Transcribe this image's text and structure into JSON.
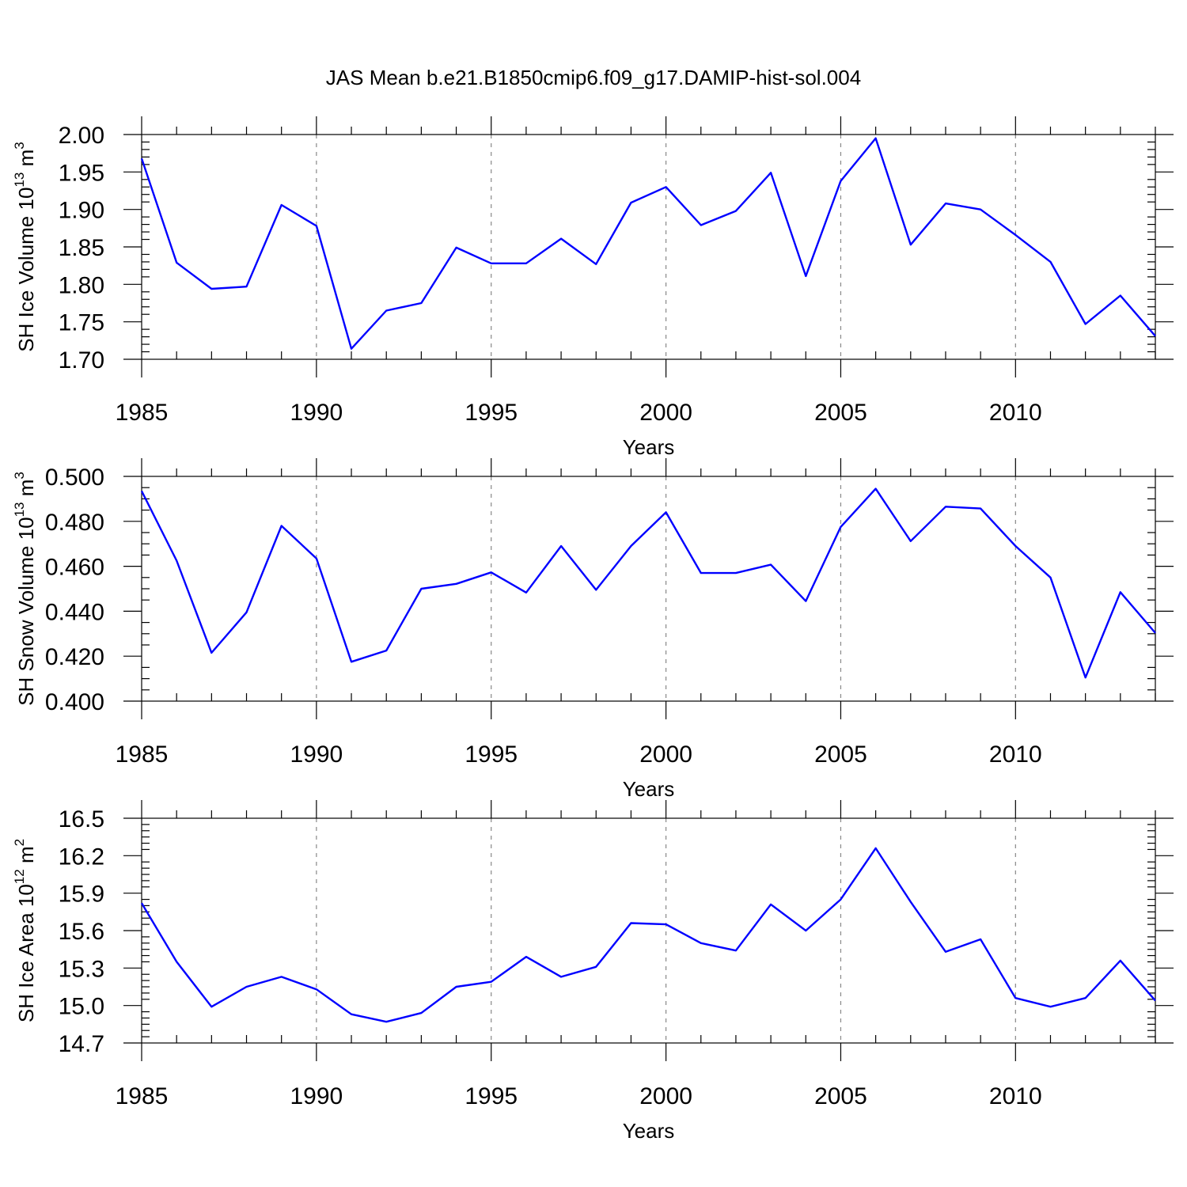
{
  "title": "JAS Mean b.e21.B1850cmip6.f09_g17.DAMIP-hist-sol.004",
  "series_color": "#0000ff",
  "chart_data": [
    {
      "type": "line",
      "title": "JAS Mean b.e21.B1850cmip6.f09_g17.DAMIP-hist-sol.004",
      "xlabel": "Years",
      "ylabel": "SH Ice Volume 10^13 m^3",
      "ylabel_parts": {
        "main": "SH Ice Volume 10",
        "exp": "13",
        "unit": " m",
        "unit_exp": "3"
      },
      "x": [
        1985,
        1986,
        1987,
        1988,
        1989,
        1990,
        1991,
        1992,
        1993,
        1994,
        1995,
        1996,
        1997,
        1998,
        1999,
        2000,
        2001,
        2002,
        2003,
        2004,
        2005,
        2006,
        2007,
        2008,
        2009,
        2010,
        2011,
        2012,
        2013,
        2014
      ],
      "y": [
        1.968,
        1.829,
        1.794,
        1.797,
        1.906,
        1.878,
        1.714,
        1.765,
        1.775,
        1.849,
        1.828,
        1.828,
        1.861,
        1.827,
        1.909,
        1.93,
        1.879,
        1.898,
        1.949,
        1.811,
        1.938,
        1.995,
        1.853,
        1.908,
        1.9,
        1.866,
        1.83,
        1.747,
        1.785,
        1.731
      ],
      "xlim": [
        1985,
        2014
      ],
      "ylim": [
        1.7,
        2.0
      ],
      "xticks": [
        "1985",
        "1990",
        "1995",
        "2000",
        "2005",
        "2010"
      ],
      "yticks": [
        "1.70",
        "1.75",
        "1.80",
        "1.85",
        "1.90",
        "1.95",
        "2.00"
      ],
      "grid": "dashed vertical at major x ticks"
    },
    {
      "type": "line",
      "xlabel": "Years",
      "ylabel": "SH Snow Volume 10^13 m^3",
      "ylabel_parts": {
        "main": "SH Snow Volume 10",
        "exp": "13",
        "unit": " m",
        "unit_exp": "3"
      },
      "x": [
        1985,
        1986,
        1987,
        1988,
        1989,
        1990,
        1991,
        1992,
        1993,
        1994,
        1995,
        1996,
        1997,
        1998,
        1999,
        2000,
        2001,
        2002,
        2003,
        2004,
        2005,
        2006,
        2007,
        2008,
        2009,
        2010,
        2011,
        2012,
        2013,
        2014
      ],
      "y": [
        0.4935,
        0.4625,
        0.4215,
        0.4395,
        0.478,
        0.4635,
        0.4175,
        0.4225,
        0.45,
        0.4522,
        0.4573,
        0.4483,
        0.469,
        0.4495,
        0.469,
        0.484,
        0.457,
        0.457,
        0.4607,
        0.4445,
        0.4775,
        0.4945,
        0.4712,
        0.4865,
        0.4857,
        0.469,
        0.455,
        0.4105,
        0.4485,
        0.4303
      ],
      "xlim": [
        1985,
        2014
      ],
      "ylim": [
        0.4,
        0.5
      ],
      "xticks": [
        "1985",
        "1990",
        "1995",
        "2000",
        "2005",
        "2010"
      ],
      "yticks": [
        "0.400",
        "0.420",
        "0.440",
        "0.460",
        "0.480",
        "0.500"
      ],
      "grid": "dashed vertical at major x ticks"
    },
    {
      "type": "line",
      "xlabel": "Years",
      "ylabel": "SH Ice Area 10^12 m^2",
      "ylabel_parts": {
        "main": "SH Ice Area 10",
        "exp": "12",
        "unit": " m",
        "unit_exp": "2"
      },
      "x": [
        1985,
        1986,
        1987,
        1988,
        1989,
        1990,
        1991,
        1992,
        1993,
        1994,
        1995,
        1996,
        1997,
        1998,
        1999,
        2000,
        2001,
        2002,
        2003,
        2004,
        2005,
        2006,
        2007,
        2008,
        2009,
        2010,
        2011,
        2012,
        2013,
        2014
      ],
      "y": [
        15.82,
        15.35,
        14.99,
        15.15,
        15.23,
        15.13,
        14.93,
        14.87,
        14.94,
        15.15,
        15.19,
        15.39,
        15.23,
        15.31,
        15.66,
        15.65,
        15.5,
        15.44,
        15.81,
        15.6,
        15.85,
        16.26,
        15.83,
        15.43,
        15.53,
        15.06,
        14.99,
        15.06,
        15.36,
        15.04
      ],
      "xlim": [
        1985,
        2014
      ],
      "ylim": [
        14.7,
        16.5
      ],
      "xticks": [
        "1985",
        "1990",
        "1995",
        "2000",
        "2005",
        "2010"
      ],
      "yticks": [
        "14.7",
        "15.0",
        "15.3",
        "15.6",
        "15.9",
        "16.2",
        "16.5"
      ],
      "grid": "dashed vertical at major x ticks"
    }
  ]
}
